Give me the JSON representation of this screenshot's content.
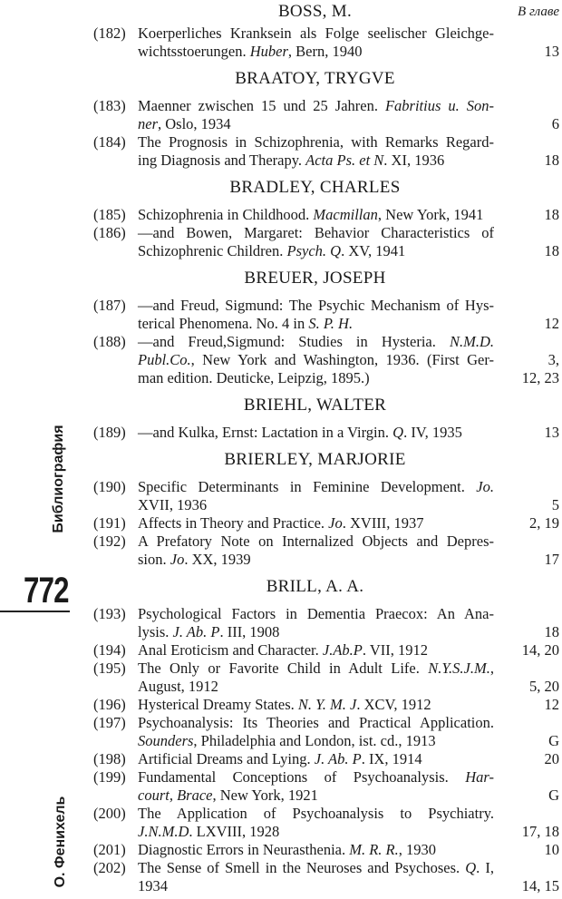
{
  "column_label": "В главе",
  "margin": {
    "section_title": "Библиография",
    "page_number": "772",
    "author": "О. Фенихель"
  },
  "sections": [
    {
      "heading": "BOSS, M.",
      "entries": [
        {
          "num": "(182)",
          "lines": [
            [
              {
                "t": "Koerperliches Kranksein als Folge seelischer Gleichge-"
              }
            ],
            [
              {
                "t": "wichtsstoerungen. "
              },
              {
                "t": "Huber",
                "i": true
              },
              {
                "t": ", Bern, 1940"
              }
            ]
          ],
          "pages": [
            "13"
          ]
        }
      ]
    },
    {
      "heading": "BRAATOY, TRYGVE",
      "entries": [
        {
          "num": "(183)",
          "lines": [
            [
              {
                "t": "Maenner zwischen 15 und 25 Jahren. "
              },
              {
                "t": "Fabritius u. Son-",
                "i": true
              }
            ],
            [
              {
                "t": "ner",
                "i": true
              },
              {
                "t": ", Oslo, 1934"
              }
            ]
          ],
          "pages": [
            "6"
          ]
        },
        {
          "num": "(184)",
          "lines": [
            [
              {
                "t": "The Prognosis in Schizophrenia, with Remarks Regard-"
              }
            ],
            [
              {
                "t": "ing Diagnosis and Therapy. "
              },
              {
                "t": "Acta Ps. et N",
                "i": true
              },
              {
                "t": ". XI, 1936"
              }
            ]
          ],
          "pages": [
            "18"
          ]
        }
      ]
    },
    {
      "heading": "BRADLEY, CHARLES",
      "entries": [
        {
          "num": "(185)",
          "lines": [
            [
              {
                "t": "Schizophrenia in Childhood. "
              },
              {
                "t": "Macmillan",
                "i": true
              },
              {
                "t": ", New York, 1941"
              }
            ]
          ],
          "pages": [
            "18"
          ]
        },
        {
          "num": "(186)",
          "lines": [
            [
              {
                "t": "—and Bowen, Margaret: Behavior Characteristics of"
              }
            ],
            [
              {
                "t": "Schizophrenic Children. "
              },
              {
                "t": "Psych. Q",
                "i": true
              },
              {
                "t": ". XV, 1941"
              }
            ]
          ],
          "pages": [
            "18"
          ]
        }
      ]
    },
    {
      "heading": "BREUER, JOSEPH",
      "entries": [
        {
          "num": "(187)",
          "lines": [
            [
              {
                "t": "—and Freud, Sigmund: The Psychic Mechanism of Hys-"
              }
            ],
            [
              {
                "t": "terical Phenomena. No. 4 in "
              },
              {
                "t": "S. P. H.",
                "i": true
              }
            ]
          ],
          "pages": [
            "12"
          ]
        },
        {
          "num": "(188)",
          "lines": [
            [
              {
                "t": "—and Freud,Sigmund: Studies in Hysteria. "
              },
              {
                "t": "N.M.D.",
                "i": true
              }
            ],
            [
              {
                "t": "Publ.Co.",
                "i": true
              },
              {
                "t": ", New York and Washington, 1936. (First Ger-"
              }
            ],
            [
              {
                "t": "man edition. Deuticke, Leipzig, 1895.)"
              }
            ]
          ],
          "pages": [
            "3,",
            "12, 23"
          ]
        }
      ]
    },
    {
      "heading": "BRIEHL, WALTER",
      "entries": [
        {
          "num": "(189)",
          "lines": [
            [
              {
                "t": "—and Kulka, Ernst: Lactation in a Virgin. "
              },
              {
                "t": "Q",
                "i": true
              },
              {
                "t": ". IV, 1935"
              }
            ]
          ],
          "pages": [
            "13"
          ]
        }
      ]
    },
    {
      "heading": "BRIERLEY, MARJORIE",
      "entries": [
        {
          "num": "(190)",
          "lines": [
            [
              {
                "t": "Specific Determinants in Feminine Development. "
              },
              {
                "t": "Jo.",
                "i": true
              }
            ],
            [
              {
                "t": "XVII, 1936"
              }
            ]
          ],
          "pages": [
            "5"
          ]
        },
        {
          "num": "(191)",
          "lines": [
            [
              {
                "t": "Affects in Theory and Practice. "
              },
              {
                "t": "Jo",
                "i": true
              },
              {
                "t": ". XVIII, 1937"
              }
            ]
          ],
          "pages": [
            "2, 19"
          ]
        },
        {
          "num": "(192)",
          "lines": [
            [
              {
                "t": "A Prefatory Note on Internalized Objects and Depres-"
              }
            ],
            [
              {
                "t": "sion. "
              },
              {
                "t": "Jo",
                "i": true
              },
              {
                "t": ". XX, 1939"
              }
            ]
          ],
          "pages": [
            "17"
          ]
        }
      ]
    },
    {
      "heading": "BRILL, A. A.",
      "entries": [
        {
          "num": "(193)",
          "lines": [
            [
              {
                "t": "Psychological Factors in Dementia Praecox: An Ana-"
              }
            ],
            [
              {
                "t": "lysis. "
              },
              {
                "t": "J. Ab. P",
                "i": true
              },
              {
                "t": ". III, 1908"
              }
            ]
          ],
          "pages": [
            "18"
          ]
        },
        {
          "num": "(194)",
          "lines": [
            [
              {
                "t": "Anal Eroticism and Character. "
              },
              {
                "t": "J.Ab.P",
                "i": true
              },
              {
                "t": ". VII, 1912"
              }
            ]
          ],
          "pages": [
            "14, 20"
          ]
        },
        {
          "num": "(195)",
          "lines": [
            [
              {
                "t": "The Only or Favorite Child in Adult Life. "
              },
              {
                "t": "N.Y.S.J.M.",
                "i": true
              },
              {
                "t": ","
              }
            ],
            [
              {
                "t": "August, 1912"
              }
            ]
          ],
          "pages": [
            "5, 20"
          ]
        },
        {
          "num": "(196)",
          "lines": [
            [
              {
                "t": "Hysterical Dreamy States. "
              },
              {
                "t": "N. Y. M. J",
                "i": true
              },
              {
                "t": ". XCV, 1912"
              }
            ]
          ],
          "pages": [
            "12"
          ]
        },
        {
          "num": "(197)",
          "lines": [
            [
              {
                "t": "Psychoanalysis: Its Theories and Practical Application."
              }
            ],
            [
              {
                "t": "Sounders",
                "i": true
              },
              {
                "t": ", Philadelphia and London, ist. cd., 1913"
              }
            ]
          ],
          "pages": [
            "G"
          ]
        },
        {
          "num": "(198)",
          "lines": [
            [
              {
                "t": "Artificial Dreams and Lying. "
              },
              {
                "t": "J. Ab. P",
                "i": true
              },
              {
                "t": ". IX, 1914"
              }
            ]
          ],
          "pages": [
            "20"
          ]
        },
        {
          "num": "(199)",
          "lines": [
            [
              {
                "t": "Fundamental Conceptions of Psychoanalysis. "
              },
              {
                "t": "Har-",
                "i": true
              }
            ],
            [
              {
                "t": "court, Brace",
                "i": true
              },
              {
                "t": ",  New York, 1921"
              }
            ]
          ],
          "pages": [
            "G"
          ]
        },
        {
          "num": "(200)",
          "lines": [
            [
              {
                "t": "The Application of Psychoanalysis to Psychiatry."
              }
            ],
            [
              {
                "t": "J.N.M.D",
                "i": true
              },
              {
                "t": ". LXVIII, 1928"
              }
            ]
          ],
          "pages": [
            "17, 18"
          ]
        },
        {
          "num": "(201)",
          "lines": [
            [
              {
                "t": "Diagnostic Errors in Neurasthenia. "
              },
              {
                "t": "M. R. R.",
                "i": true
              },
              {
                "t": ", 1930"
              }
            ]
          ],
          "pages": [
            "10"
          ]
        },
        {
          "num": "(202)",
          "lines": [
            [
              {
                "t": "The Sense of Smell in the Neuroses and Psychoses. "
              },
              {
                "t": "Q",
                "i": true
              },
              {
                "t": ". I,"
              }
            ],
            [
              {
                "t": "1934"
              }
            ]
          ],
          "pages": [
            "14, 15"
          ]
        }
      ]
    }
  ]
}
